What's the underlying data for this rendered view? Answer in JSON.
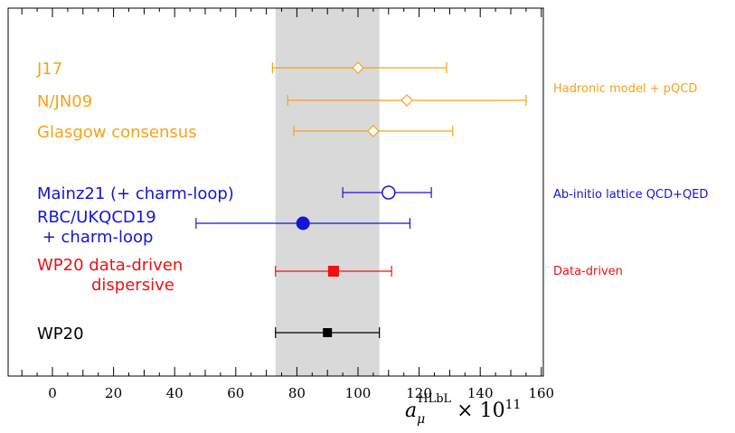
{
  "chart_data": {
    "type": "scatter",
    "subtype": "forest-plot",
    "xlabel_base": "a",
    "xlabel_sub": "μ",
    "xlabel_sup": "HLbL",
    "xlabel_times": "× 10",
    "xlabel_exp": "11",
    "xlim": [
      -15,
      160
    ],
    "x_ticks": [
      0,
      20,
      40,
      60,
      80,
      100,
      120,
      140,
      160
    ],
    "band": {
      "x": [
        73,
        107
      ],
      "color": "#d9d9d9"
    },
    "grid": false,
    "groups": [
      {
        "label": "Hadronic model + pQCD",
        "color": "#f5a31a"
      },
      {
        "label": "Ab-initio lattice QCD+QED",
        "color": "#1515d6"
      },
      {
        "label": "Data-driven",
        "color": "#ee1111"
      }
    ],
    "points": [
      {
        "label": [
          "J17"
        ],
        "value": 100,
        "err_low": 72,
        "err_high": 129,
        "marker": "open-diamond",
        "color": "#f5a31a"
      },
      {
        "label": [
          "N/JN09"
        ],
        "value": 116,
        "err_low": 77,
        "err_high": 155,
        "marker": "open-diamond",
        "color": "#f5a31a"
      },
      {
        "label": [
          "Glasgow consensus"
        ],
        "value": 105,
        "err_low": 79,
        "err_high": 131,
        "marker": "open-diamond",
        "color": "#f5a31a"
      },
      {
        "label": [
          "Mainz21 (+ charm-loop)"
        ],
        "value": 110,
        "err_low": 95,
        "err_high": 124,
        "marker": "open-circle",
        "color": "#1515d6"
      },
      {
        "label": [
          "RBC/UKQCD19",
          " + charm-loop"
        ],
        "value": 82,
        "err_low": 47,
        "err_high": 117,
        "marker": "filled-circle",
        "color": "#1515d6"
      },
      {
        "label": [
          "WP20 data-driven",
          "dispersive"
        ],
        "value": 92,
        "err_low": 73,
        "err_high": 111,
        "marker": "filled-square",
        "color": "#ee1111"
      },
      {
        "label": [
          "WP20"
        ],
        "value": 90,
        "err_low": 73,
        "err_high": 107,
        "marker": "filled-square",
        "color": "#000000"
      }
    ]
  }
}
